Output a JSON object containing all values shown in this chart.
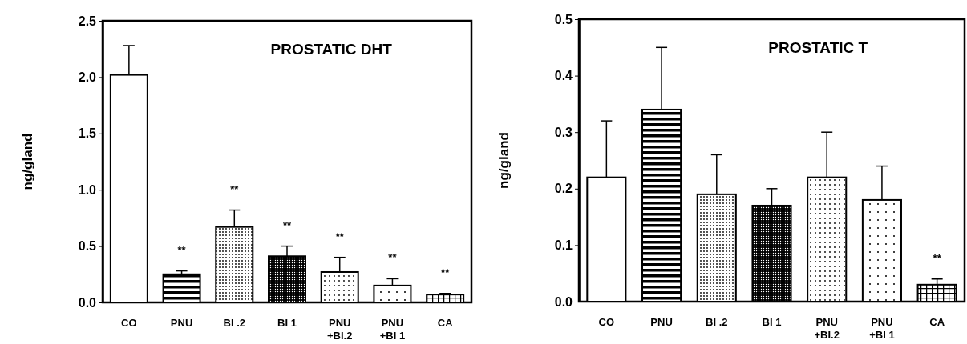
{
  "chart_data": [
    {
      "type": "bar",
      "title": "PROSTATIC DHT",
      "ylabel": "ng/gland",
      "categories": [
        "CO",
        "PNU",
        "BI .2",
        "BI 1",
        "PNU\n+BI.2",
        "PNU\n+BI 1",
        "CA"
      ],
      "values": [
        2.02,
        0.25,
        0.67,
        0.41,
        0.27,
        0.15,
        0.07
      ],
      "errors": [
        [
          2.02,
          2.28
        ],
        [
          0.25,
          0.28
        ],
        [
          0.67,
          0.82
        ],
        [
          0.41,
          0.5
        ],
        [
          0.27,
          0.4
        ],
        [
          0.15,
          0.21
        ],
        [
          0.07,
          0.08
        ]
      ],
      "colors": [
        "#ffffff",
        "#000000",
        "#000000",
        "#000000",
        "#000000",
        "#000000",
        "#000000"
      ],
      "ylim": [
        0,
        2.5
      ],
      "yticks": [
        {
          "value": 0,
          "label": "0.0"
        },
        {
          "value": 0.5,
          "label": "0.5"
        },
        {
          "value": 1,
          "label": "1.0"
        },
        {
          "value": 1.5,
          "label": "1.5"
        },
        {
          "value": 2,
          "label": "2.0"
        },
        {
          "value": 2.5,
          "label": "2.5"
        }
      ],
      "annotations": [
        "**",
        "**",
        "**",
        "**",
        "**",
        "**"
      ]
    },
    {
      "type": "bar",
      "title": "PROSTATIC T",
      "ylabel": "ng/gland",
      "categories": [
        "CO",
        "PNU",
        "BI .2",
        "BI 1",
        "PNU\n+BI.2",
        "PNU\n+BI 1",
        "CA"
      ],
      "values": [
        0.22,
        0.34,
        0.19,
        0.17,
        0.22,
        0.18,
        0.03
      ],
      "errors": [
        [
          0.22,
          0.32
        ],
        [
          0.34,
          0.45
        ],
        [
          0.19,
          0.26
        ],
        [
          0.17,
          0.2
        ],
        [
          0.22,
          0.3
        ],
        [
          0.18,
          0.24
        ],
        [
          0.03,
          0.04
        ]
      ],
      "colors": [
        "#ffffff",
        "#000000",
        "#000000",
        "#000000",
        "#000000",
        "#000000",
        "#000000"
      ],
      "ylim": [
        0,
        0.5
      ],
      "yticks": [
        {
          "value": 0,
          "label": "0.0"
        },
        0.1,
        0.2,
        0.3,
        0.4,
        0.5
      ],
      "annotations": [
        "**"
      ]
    }
  ]
}
